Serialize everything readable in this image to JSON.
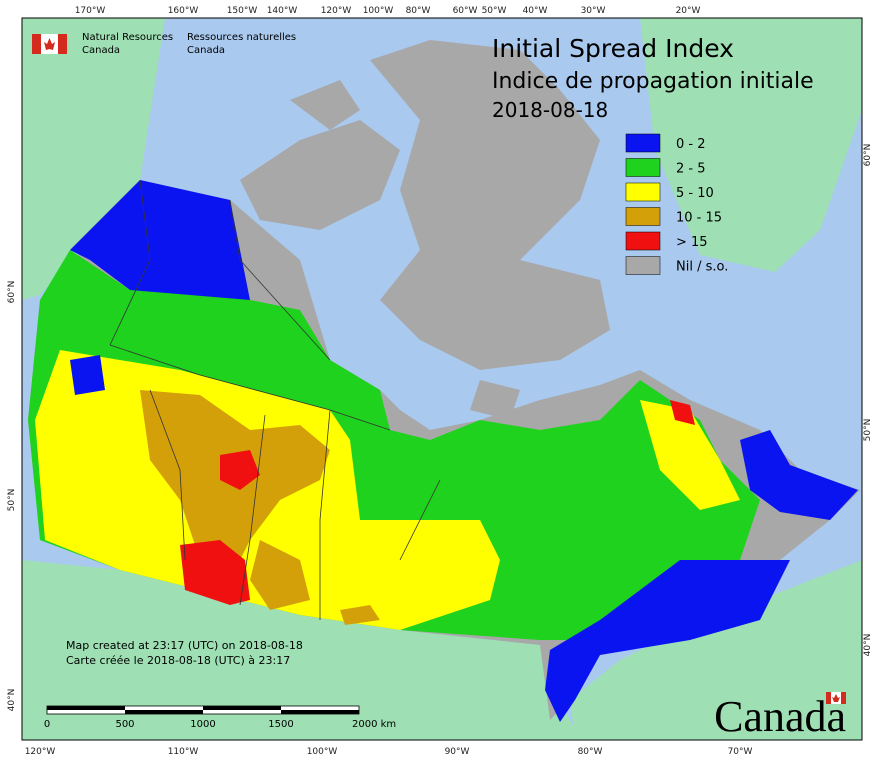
{
  "header": {
    "agency_en": [
      "Natural Resources",
      "Canada"
    ],
    "agency_fr": [
      "Ressources naturelles",
      "Canada"
    ]
  },
  "title": [
    "Initial Spread Index",
    "Indice de propagation initiale",
    "2018-08-18"
  ],
  "legend": [
    {
      "label": "0 - 2",
      "color": "#0a14f0"
    },
    {
      "label": "2 - 5",
      "color": "#1ed21e"
    },
    {
      "label": "5 - 10",
      "color": "#ffff00"
    },
    {
      "label": "10 - 15",
      "color": "#d4a00a"
    },
    {
      "label": "> 15",
      "color": "#f01010"
    },
    {
      "label": "Nil / s.o.",
      "color": "#a8a8a8"
    }
  ],
  "graticule": {
    "top": [
      "170°W",
      "160°W",
      "150°W",
      "140°W",
      "120°W",
      "100°W",
      "80°W",
      "60°W",
      "50°W",
      "40°W",
      "30°W",
      "20°W"
    ],
    "bottom": [
      "120°W",
      "110°W",
      "100°W",
      "90°W",
      "80°W",
      "70°W"
    ],
    "left": [
      "60°N",
      "50°N",
      "40°N"
    ],
    "right": [
      "60°N",
      "50°N",
      "40°N"
    ]
  },
  "credits": [
    "Map created at 23:17 (UTC) on 2018-08-18",
    "Carte créée le 2018-08-18 (UTC) à 23:17"
  ],
  "scale_bar": [
    "0",
    "500",
    "1000",
    "1500",
    "2000 km"
  ],
  "wordmark": "Canada"
}
